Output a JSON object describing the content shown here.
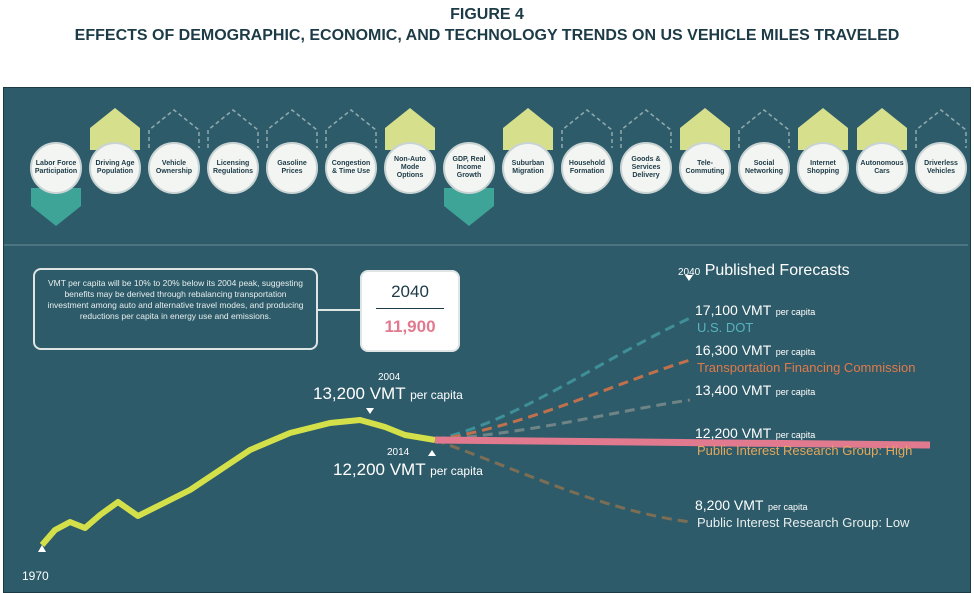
{
  "figure_label": "FIGURE 4",
  "title": "EFFECTS OF DEMOGRAPHIC, ECONOMIC, AND TECHNOLOGY TRENDS ON US VEHICLE MILES TRAVELED",
  "factors": [
    {
      "label": "Labor Force Participation",
      "trend": "down"
    },
    {
      "label": "Driving Age Population",
      "trend": "up"
    },
    {
      "label": "Vehicle Ownership",
      "trend": "neutral"
    },
    {
      "label": "Licensing Regulations",
      "trend": "neutral"
    },
    {
      "label": "Gasoline Prices",
      "trend": "neutral"
    },
    {
      "label": "Congestion & Time Use",
      "trend": "neutral"
    },
    {
      "label": "Non-Auto Mode Options",
      "trend": "up"
    },
    {
      "label": "GDP, Real Income Growth",
      "trend": "down"
    },
    {
      "label": "Suburban Migration",
      "trend": "up"
    },
    {
      "label": "Household Formation",
      "trend": "neutral"
    },
    {
      "label": "Goods & Services Delivery",
      "trend": "neutral"
    },
    {
      "label": "Tele-Commuting",
      "trend": "up"
    },
    {
      "label": "Social Networking",
      "trend": "neutral"
    },
    {
      "label": "Internet Shopping",
      "trend": "up"
    },
    {
      "label": "Autonomous Cars",
      "trend": "up"
    },
    {
      "label": "Driverless Vehicles",
      "trend": "neutral"
    }
  ],
  "callout": "VMT per capita will be 10% to 20% below its 2004 peak, suggesting benefits may be derived through rebalancing transportation investment among auto and alternative travel modes, and producing reductions per capita in energy use and emissions.",
  "target": {
    "year": "2040",
    "value": "11,900"
  },
  "start_year": "1970",
  "peak": {
    "year": "2004",
    "value": "13,200 VMT",
    "unit": "per capita"
  },
  "current": {
    "year": "2014",
    "value": "12,200 VMT",
    "unit": "per capita"
  },
  "forecasts": {
    "year": "2040",
    "title": "Published Forecasts",
    "items": [
      {
        "value": "17,100 VMT",
        "unit": "per capita",
        "source": "U.S. DOT"
      },
      {
        "value": "16,300 VMT",
        "unit": "per capita",
        "source": "Transportation Financing Commission"
      },
      {
        "value": "13,400 VMT",
        "unit": "per capita"
      },
      {
        "value": "12,200 VMT",
        "unit": "per capita",
        "source": "Public Interest Research Group: High"
      },
      {
        "value": "8,200 VMT",
        "unit": "per capita",
        "source": "Public Interest Research Group: Low"
      }
    ]
  }
}
